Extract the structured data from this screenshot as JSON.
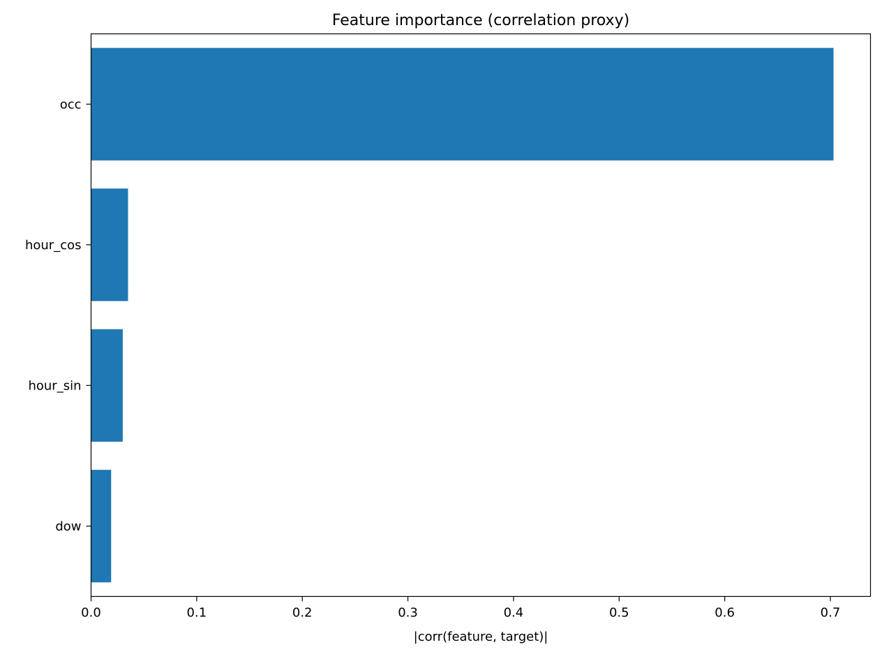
{
  "chart_data": {
    "type": "bar",
    "orientation": "horizontal",
    "title": "Feature importance (correlation proxy)",
    "xlabel": "|corr(feature, target)|",
    "ylabel": "",
    "categories": [
      "occ",
      "hour_cos",
      "hour_sin",
      "dow"
    ],
    "values": [
      0.703,
      0.035,
      0.03,
      0.019
    ],
    "xlim": [
      0,
      0.738
    ],
    "xticks": [
      0.0,
      0.1,
      0.2,
      0.3,
      0.4,
      0.5,
      0.6,
      0.7
    ],
    "xtick_labels": [
      "0.0",
      "0.1",
      "0.2",
      "0.3",
      "0.4",
      "0.5",
      "0.6",
      "0.7"
    ],
    "grid": false,
    "legend": "none",
    "bar_color": "#1f77b4"
  }
}
